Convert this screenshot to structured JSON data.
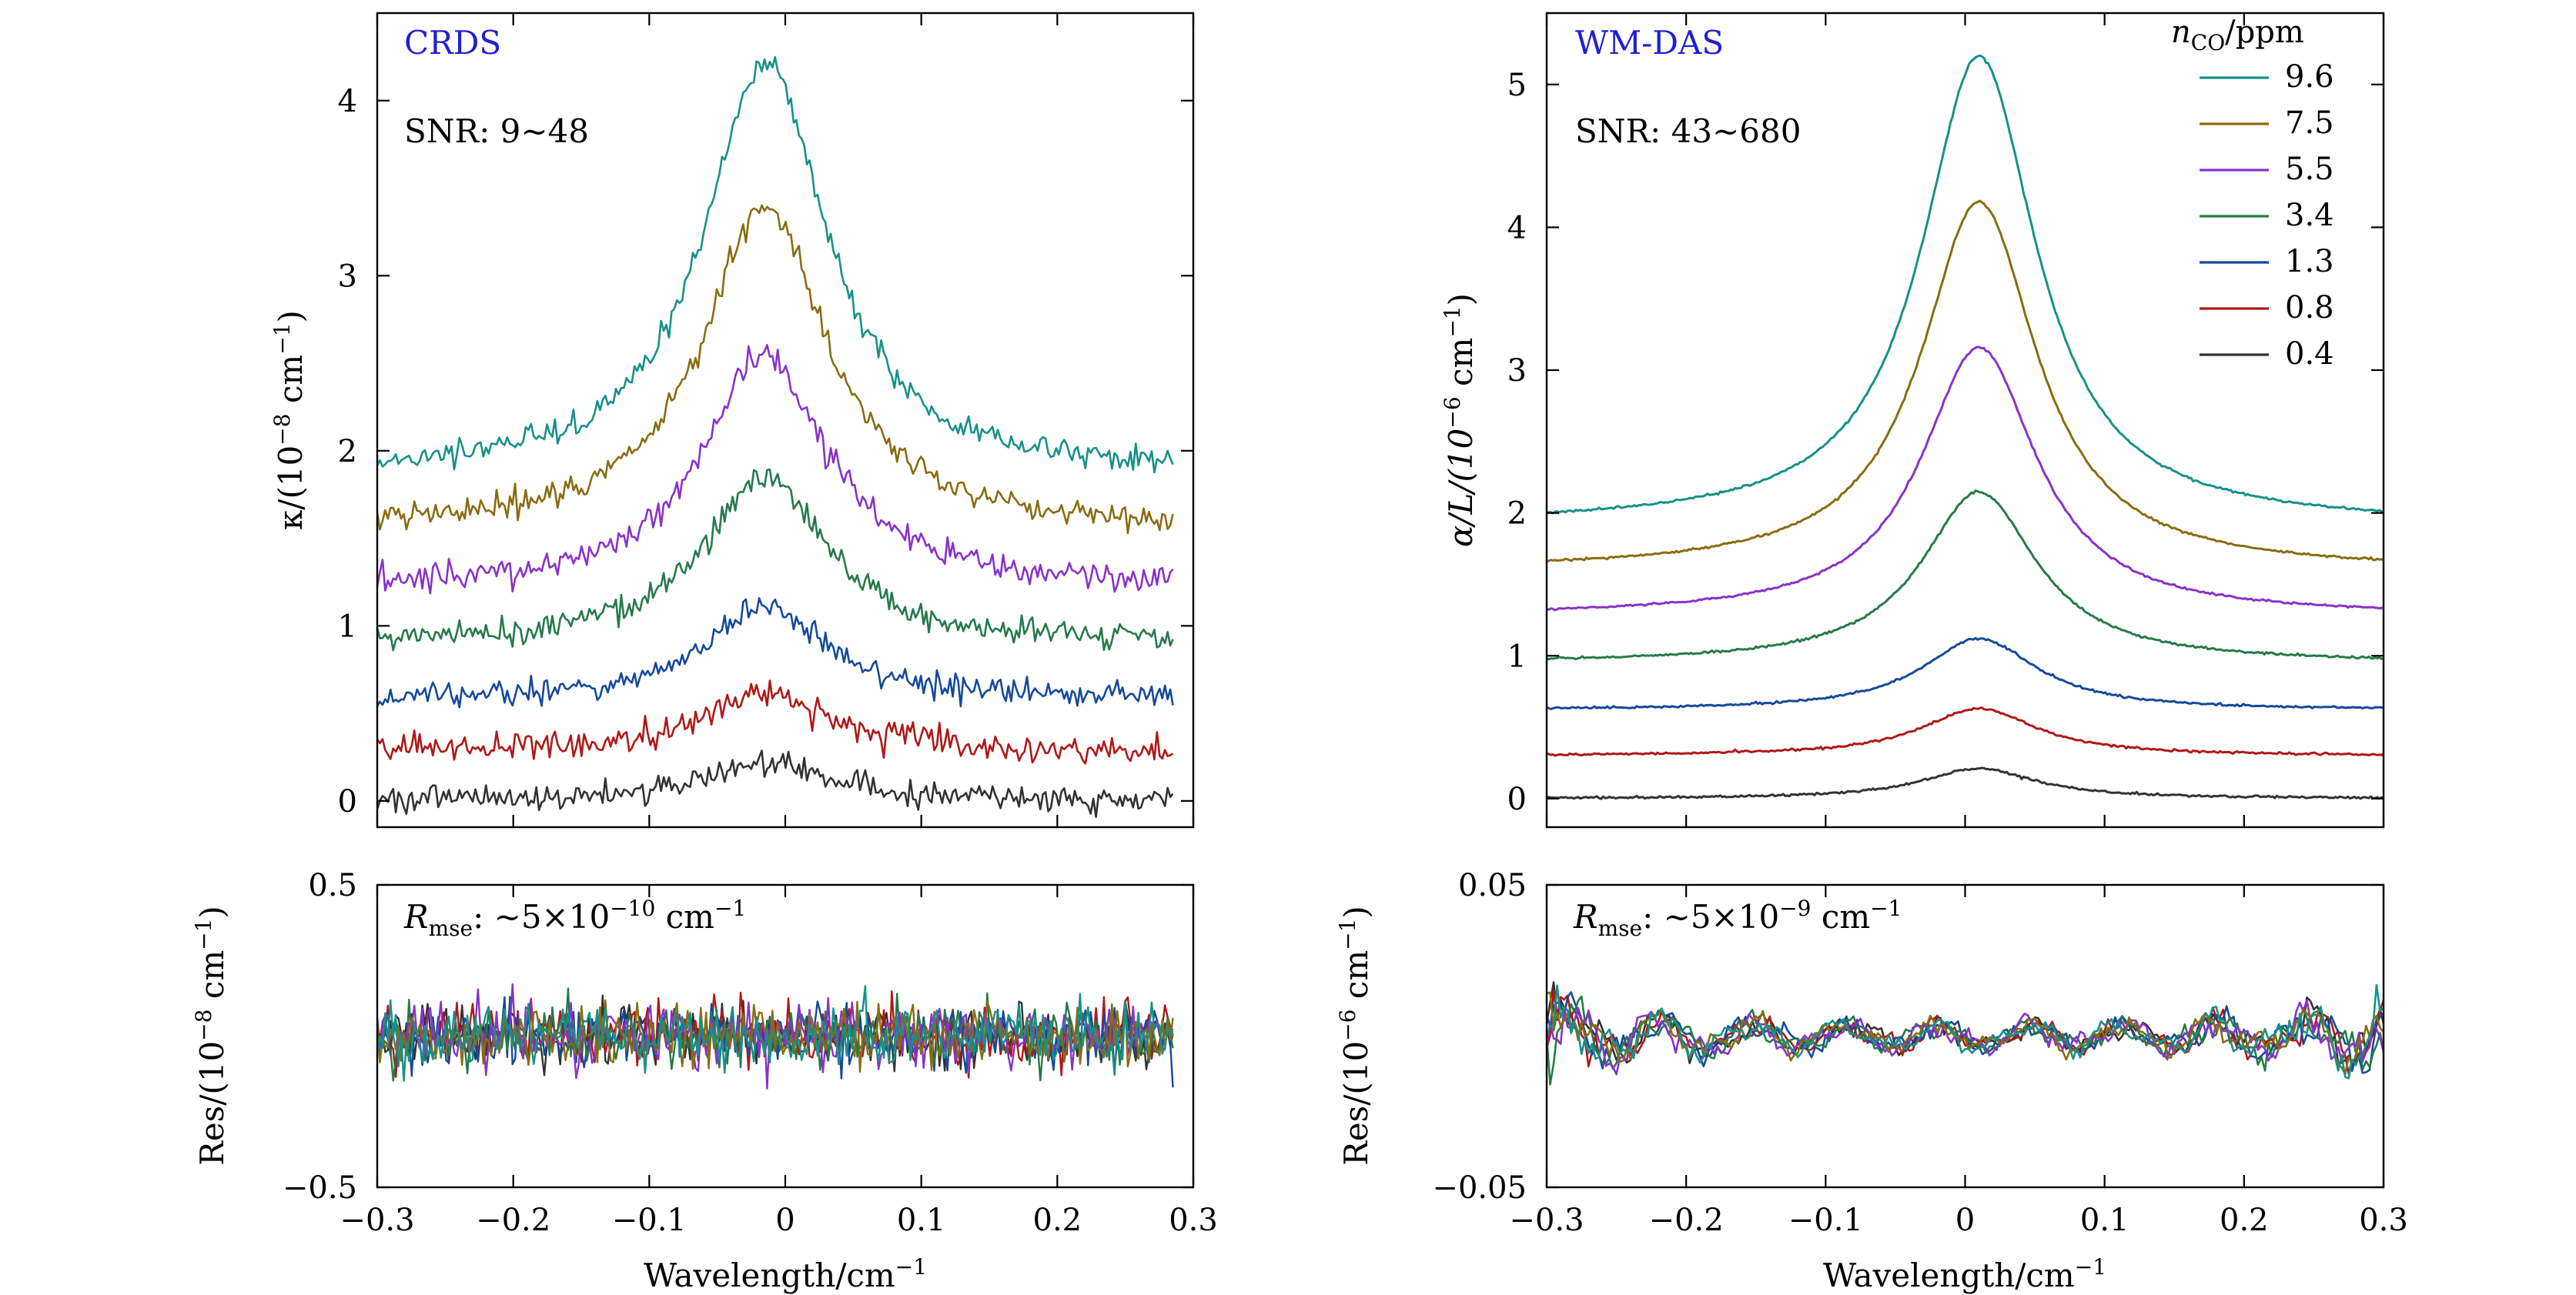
{
  "figure": {
    "background": "#ffffff"
  },
  "chart_data": [
    {
      "id": "crds_main",
      "type": "line",
      "title": "CRDS",
      "title_color": "#2020d0",
      "annotation": "SNR: 9∼48",
      "ylabel_main": "κ/(10",
      "ylabel_exp": "−8",
      "ylabel_tail": " cm",
      "ylabel_tail_exp": "−1",
      "ylabel_close": ")",
      "xlim": [
        -0.3,
        0.3
      ],
      "ylim": [
        -0.15,
        4.5
      ],
      "yticks": [
        0,
        1,
        2,
        3,
        4
      ],
      "ytick_labels": [
        "0",
        "1",
        "2",
        "3",
        "4"
      ],
      "peak_center": -0.015,
      "peak_hwhm": 0.055,
      "noise": "high",
      "series": [
        {
          "baseline": 0.0,
          "peak": 0.22,
          "color": "#333333"
        },
        {
          "baseline": 0.28,
          "peak": 0.62,
          "color": "#b01818"
        },
        {
          "baseline": 0.58,
          "peak": 1.1,
          "color": "#164a9a"
        },
        {
          "baseline": 0.9,
          "peak": 1.85,
          "color": "#267a4a"
        },
        {
          "baseline": 1.22,
          "peak": 2.55,
          "color": "#8a32c8"
        },
        {
          "baseline": 1.55,
          "peak": 3.4,
          "color": "#8a6c10"
        },
        {
          "baseline": 1.85,
          "peak": 4.22,
          "color": "#16918a"
        }
      ]
    },
    {
      "id": "wmdas_main",
      "type": "line",
      "title": "WM-DAS",
      "title_color": "#2020d0",
      "annotation": "SNR: 43∼680",
      "ylabel_main": "α/L/(10",
      "ylabel_exp": "−6",
      "ylabel_tail": " cm",
      "ylabel_tail_exp": "−1",
      "ylabel_close": ")",
      "xlim": [
        -0.3,
        0.3
      ],
      "ylim": [
        -0.2,
        5.5
      ],
      "yticks": [
        0,
        1,
        2,
        3,
        4,
        5
      ],
      "ytick_labels": [
        "0",
        "1",
        "2",
        "3",
        "4",
        "5"
      ],
      "peak_center": 0.01,
      "peak_hwhm": 0.05,
      "noise": "low",
      "legend_title_main": "n",
      "legend_title_sub": "CO",
      "legend_title_tail": "/ppm",
      "legend_position": "top-right",
      "series": [
        {
          "name": "9.6",
          "baseline": 1.92,
          "peak": 5.2,
          "color": "#16918a"
        },
        {
          "name": "7.5",
          "baseline": 1.6,
          "peak": 4.18,
          "color": "#8a6c10"
        },
        {
          "name": "5.5",
          "baseline": 1.28,
          "peak": 3.16,
          "color": "#8a32c8"
        },
        {
          "name": "3.4",
          "baseline": 0.95,
          "peak": 2.15,
          "color": "#267a4a"
        },
        {
          "name": "1.3",
          "baseline": 0.62,
          "peak": 1.12,
          "color": "#164a9a"
        },
        {
          "name": "0.8",
          "baseline": 0.3,
          "peak": 0.63,
          "color": "#b01818"
        },
        {
          "name": "0.4",
          "baseline": 0.0,
          "peak": 0.21,
          "color": "#333333"
        }
      ]
    },
    {
      "id": "crds_res",
      "type": "line",
      "annotation_main": "R",
      "annotation_sub": "mse",
      "annotation_tail": ": ∼5×10",
      "annotation_exp": "−10",
      "annotation_unit": " cm",
      "annotation_unit_exp": "−1",
      "ylabel_main": "Res/(10",
      "ylabel_exp": "−8",
      "ylabel_tail": " cm",
      "ylabel_tail_exp": "−1",
      "ylabel_close": ")",
      "xlabel_main": "Wavelength/cm",
      "xlabel_exp": "−1",
      "xlim": [
        -0.3,
        0.3
      ],
      "ylim": [
        -0.5,
        0.5
      ],
      "yticks": [
        -0.5,
        0.5
      ],
      "ytick_labels": [
        "−0.5",
        "0.5"
      ],
      "xticks": [
        -0.3,
        -0.2,
        -0.1,
        0,
        0.1,
        0.2,
        0.3
      ],
      "xtick_labels": [
        "−0.3",
        "−0.2",
        "−0.1",
        "0",
        "0.1",
        "0.2",
        "0.3"
      ],
      "amplitude": 0.12,
      "colors": [
        "#333333",
        "#b01818",
        "#164a9a",
        "#267a4a",
        "#8a32c8",
        "#8a6c10",
        "#16918a"
      ]
    },
    {
      "id": "wmdas_res",
      "type": "line",
      "annotation_main": "R",
      "annotation_sub": "mse",
      "annotation_tail": ": ∼5×10",
      "annotation_exp": "−9",
      "annotation_unit": " cm",
      "annotation_unit_exp": "−1",
      "ylabel_main": "Res/(10",
      "ylabel_exp": "−6",
      "ylabel_tail": " cm",
      "ylabel_tail_exp": "−1",
      "ylabel_close": ")",
      "xlabel_main": "Wavelength/cm",
      "xlabel_exp": "−1",
      "xlim": [
        -0.3,
        0.3
      ],
      "ylim": [
        -0.05,
        0.05
      ],
      "yticks": [
        -0.05,
        0.05
      ],
      "ytick_labels": [
        "−0.05",
        "0.05"
      ],
      "xticks": [
        -0.3,
        -0.2,
        -0.1,
        0,
        0.1,
        0.2,
        0.3
      ],
      "xtick_labels": [
        "−0.3",
        "−0.2",
        "−0.1",
        "0",
        "0.1",
        "0.2",
        "0.3"
      ],
      "amplitude": 0.01,
      "colors": [
        "#333333",
        "#b01818",
        "#164a9a",
        "#267a4a",
        "#8a32c8",
        "#8a6c10",
        "#16918a"
      ]
    }
  ]
}
